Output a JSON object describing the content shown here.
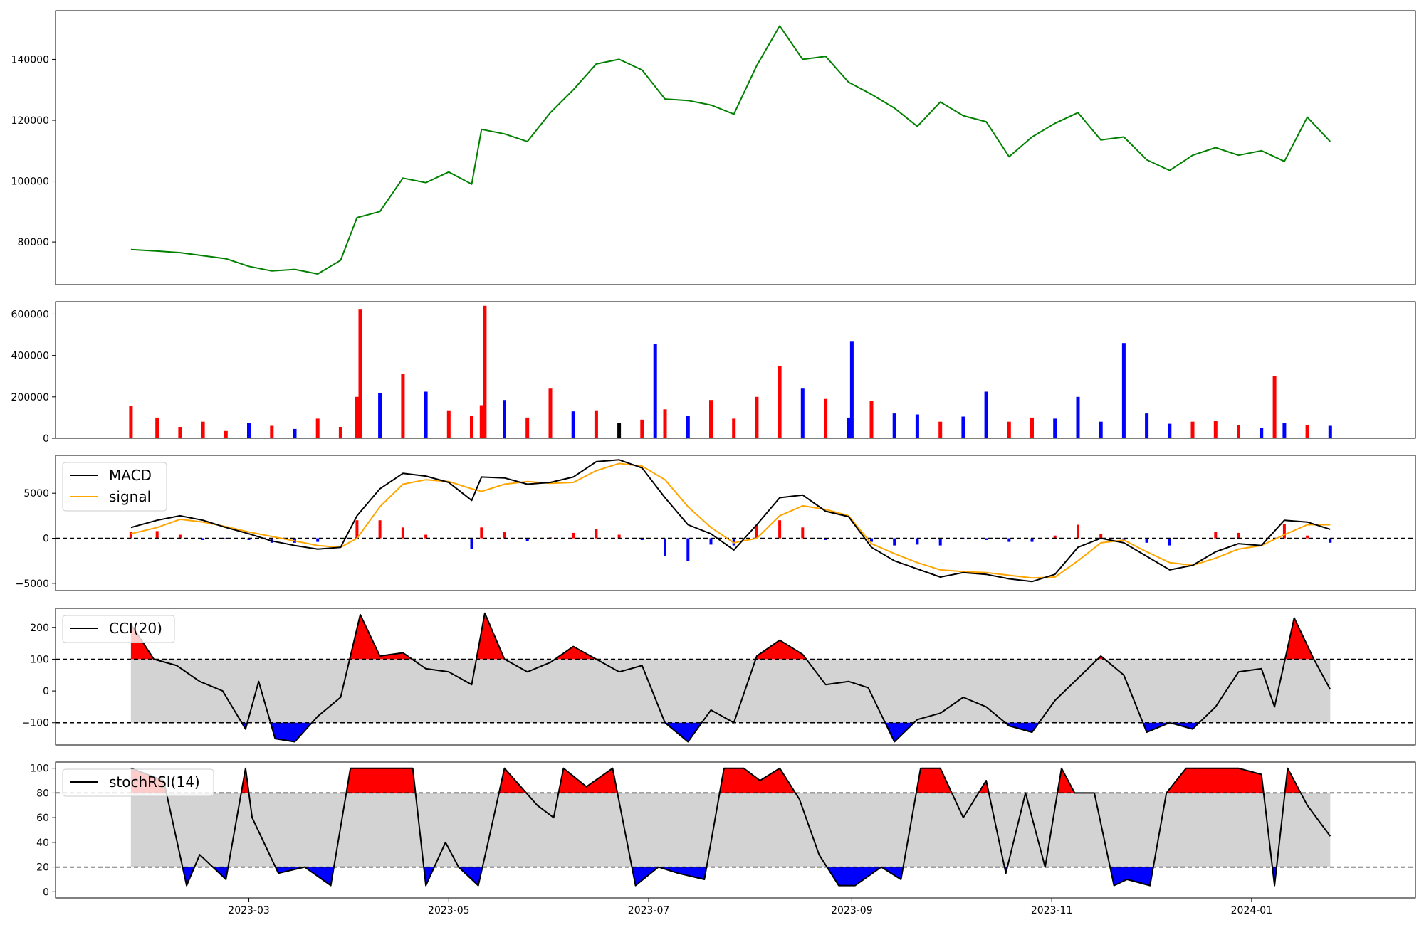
{
  "colors": {
    "price": "#008000",
    "up": "#ff0000",
    "down": "#0000ff",
    "flat": "#000000",
    "macd": "#000000",
    "signal": "#ffa500",
    "band": "#d3d3d3",
    "over": "#ff0000",
    "under": "#0000ff",
    "axis": "#000000",
    "grid": "none"
  },
  "chart_data": [
    {
      "type": "line",
      "name": "price",
      "xlim": [
        "2023-01-01",
        "2024-02-20"
      ],
      "ylim": [
        66000,
        156000
      ],
      "yticks": [
        80000,
        100000,
        120000,
        140000
      ],
      "ytick_labels": [
        "80000",
        "100000",
        "120000",
        "140000"
      ],
      "x": [
        "2023-01-24",
        "2023-02-01",
        "2023-02-08",
        "2023-02-15",
        "2023-02-22",
        "2023-03-01",
        "2023-03-08",
        "2023-03-15",
        "2023-03-22",
        "2023-03-29",
        "2023-04-03",
        "2023-04-10",
        "2023-04-17",
        "2023-04-24",
        "2023-05-01",
        "2023-05-08",
        "2023-05-11",
        "2023-05-18",
        "2023-05-25",
        "2023-06-01",
        "2023-06-08",
        "2023-06-15",
        "2023-06-22",
        "2023-06-29",
        "2023-07-06",
        "2023-07-13",
        "2023-07-20",
        "2023-07-27",
        "2023-08-03",
        "2023-08-10",
        "2023-08-17",
        "2023-08-24",
        "2023-08-31",
        "2023-09-07",
        "2023-09-14",
        "2023-09-21",
        "2023-09-28",
        "2023-10-05",
        "2023-10-12",
        "2023-10-19",
        "2023-10-26",
        "2023-11-02",
        "2023-11-09",
        "2023-11-16",
        "2023-11-23",
        "2023-11-30",
        "2023-12-07",
        "2023-12-14",
        "2023-12-21",
        "2023-12-28",
        "2024-01-04",
        "2024-01-11",
        "2024-01-18",
        "2024-01-25"
      ],
      "values": [
        77500,
        77000,
        76500,
        75500,
        74500,
        72000,
        70500,
        71000,
        69500,
        74000,
        88000,
        90000,
        101000,
        99500,
        103000,
        99000,
        117000,
        115500,
        113000,
        122500,
        130000,
        138500,
        140000,
        136500,
        127000,
        126500,
        125000,
        122000,
        138000,
        151000,
        140000,
        141000,
        132500,
        128500,
        124000,
        118000,
        126000,
        121500,
        119500,
        108000,
        114500,
        119000,
        122500,
        113500,
        114500,
        107000,
        103500,
        108500,
        111000,
        108500,
        110000,
        106500,
        121000,
        113000
      ]
    },
    {
      "type": "bar",
      "name": "volume",
      "ylim": [
        0,
        660000
      ],
      "yticks": [
        0,
        200000,
        400000,
        600000
      ],
      "ytick_labels": [
        "0",
        "200000",
        "400000",
        "600000"
      ],
      "x": [
        "2023-01-24",
        "2023-02-01",
        "2023-02-08",
        "2023-02-15",
        "2023-02-22",
        "2023-03-01",
        "2023-03-08",
        "2023-03-15",
        "2023-03-22",
        "2023-03-29",
        "2023-04-03",
        "2023-04-04",
        "2023-04-10",
        "2023-04-17",
        "2023-04-24",
        "2023-05-01",
        "2023-05-08",
        "2023-05-11",
        "2023-05-12",
        "2023-05-18",
        "2023-05-25",
        "2023-06-01",
        "2023-06-08",
        "2023-06-15",
        "2023-06-22",
        "2023-06-29",
        "2023-07-03",
        "2023-07-06",
        "2023-07-13",
        "2023-07-20",
        "2023-07-27",
        "2023-08-03",
        "2023-08-10",
        "2023-08-17",
        "2023-08-24",
        "2023-08-31",
        "2023-09-01",
        "2023-09-07",
        "2023-09-14",
        "2023-09-21",
        "2023-09-28",
        "2023-10-05",
        "2023-10-12",
        "2023-10-19",
        "2023-10-26",
        "2023-11-02",
        "2023-11-09",
        "2023-11-16",
        "2023-11-23",
        "2023-11-30",
        "2023-12-07",
        "2023-12-14",
        "2023-12-21",
        "2023-12-28",
        "2024-01-04",
        "2024-01-08",
        "2024-01-11",
        "2024-01-18",
        "2024-01-25"
      ],
      "values": [
        155000,
        100000,
        55000,
        80000,
        35000,
        75000,
        60000,
        45000,
        95000,
        55000,
        200000,
        625000,
        220000,
        310000,
        225000,
        135000,
        110000,
        160000,
        640000,
        185000,
        100000,
        240000,
        130000,
        135000,
        75000,
        90000,
        455000,
        140000,
        110000,
        185000,
        95000,
        200000,
        350000,
        240000,
        190000,
        100000,
        470000,
        180000,
        120000,
        115000,
        80000,
        105000,
        225000,
        80000,
        100000,
        95000,
        200000,
        80000,
        460000,
        120000,
        70000,
        80000,
        85000,
        65000,
        50000,
        300000,
        75000,
        65000,
        60000
      ],
      "direction": [
        "up",
        "up",
        "up",
        "up",
        "up",
        "down",
        "up",
        "down",
        "up",
        "up",
        "up",
        "up",
        "down",
        "up",
        "down",
        "up",
        "up",
        "up",
        "up",
        "down",
        "up",
        "up",
        "down",
        "up",
        "flat",
        "up",
        "down",
        "up",
        "down",
        "up",
        "up",
        "up",
        "up",
        "down",
        "up",
        "down",
        "down",
        "up",
        "down",
        "down",
        "up",
        "down",
        "down",
        "up",
        "up",
        "down",
        "down",
        "down",
        "down",
        "down",
        "down",
        "up",
        "up",
        "up",
        "down",
        "up",
        "down",
        "up",
        "down"
      ]
    },
    {
      "type": "line",
      "name": "macd-panel",
      "ylim": [
        -5800,
        9200
      ],
      "yticks": [
        -5000,
        0,
        5000
      ],
      "ytick_labels": [
        "−5000",
        "0",
        "5000"
      ],
      "legend": {
        "position": "top-left",
        "entries": [
          "MACD",
          "signal"
        ]
      },
      "x": [
        "2023-01-24",
        "2023-02-01",
        "2023-02-08",
        "2023-02-15",
        "2023-02-22",
        "2023-03-01",
        "2023-03-08",
        "2023-03-15",
        "2023-03-22",
        "2023-03-29",
        "2023-04-03",
        "2023-04-10",
        "2023-04-17",
        "2023-04-24",
        "2023-05-01",
        "2023-05-08",
        "2023-05-11",
        "2023-05-18",
        "2023-05-25",
        "2023-06-01",
        "2023-06-08",
        "2023-06-15",
        "2023-06-22",
        "2023-06-29",
        "2023-07-06",
        "2023-07-13",
        "2023-07-20",
        "2023-07-27",
        "2023-08-03",
        "2023-08-10",
        "2023-08-17",
        "2023-08-24",
        "2023-08-31",
        "2023-09-07",
        "2023-09-14",
        "2023-09-21",
        "2023-09-28",
        "2023-10-05",
        "2023-10-12",
        "2023-10-19",
        "2023-10-26",
        "2023-11-02",
        "2023-11-09",
        "2023-11-16",
        "2023-11-23",
        "2023-11-30",
        "2023-12-07",
        "2023-12-14",
        "2023-12-21",
        "2023-12-28",
        "2024-01-04",
        "2024-01-11",
        "2024-01-18",
        "2024-01-25"
      ],
      "series": [
        {
          "name": "MACD",
          "values": [
            1200,
            2000,
            2500,
            2000,
            1200,
            500,
            -300,
            -800,
            -1200,
            -1000,
            2500,
            5500,
            7200,
            6900,
            6200,
            4200,
            6800,
            6700,
            6000,
            6200,
            6800,
            8500,
            8700,
            7800,
            4500,
            1500,
            500,
            -1300,
            1500,
            4500,
            4800,
            3000,
            2400,
            -1000,
            -2500,
            -3400,
            -4300,
            -3800,
            -4000,
            -4500,
            -4800,
            -4000,
            -1000,
            0,
            -500,
            -2000,
            -3500,
            -3000,
            -1500,
            -600,
            -800,
            2000,
            1800,
            1000
          ]
        },
        {
          "name": "signal",
          "values": [
            500,
            1200,
            2100,
            1800,
            1300,
            700,
            200,
            -300,
            -800,
            -1000,
            0,
            3500,
            6000,
            6500,
            6300,
            5500,
            5200,
            6000,
            6300,
            6100,
            6200,
            7500,
            8300,
            8000,
            6500,
            3500,
            1200,
            -500,
            0,
            2500,
            3600,
            3200,
            2500,
            -600,
            -1700,
            -2700,
            -3500,
            -3700,
            -3800,
            -4100,
            -4400,
            -4300,
            -2500,
            -500,
            -200,
            -1500,
            -2700,
            -3000,
            -2200,
            -1200,
            -800,
            400,
            1500,
            1500
          ]
        }
      ],
      "histogram": [
        700,
        800,
        400,
        -200,
        -100,
        -200,
        -500,
        -500,
        -400,
        0,
        2000,
        2000,
        1200,
        400,
        -100,
        -1200,
        1200,
        700,
        -300,
        100,
        600,
        1000,
        400,
        -200,
        -2000,
        -2500,
        -700,
        -800,
        1500,
        2000,
        1200,
        -200,
        -100,
        -400,
        -800,
        -700,
        -800,
        -100,
        -200,
        -400,
        -400,
        300,
        1500,
        500,
        -300,
        -500,
        -800,
        0,
        700,
        600,
        0,
        1600,
        300,
        -500
      ]
    },
    {
      "type": "area",
      "name": "cci-panel",
      "ylim": [
        -170,
        260
      ],
      "yticks": [
        -100,
        0,
        100,
        200
      ],
      "ytick_labels": [
        "−100",
        "0",
        "100",
        "200"
      ],
      "band": [
        -100,
        100
      ],
      "legend": {
        "position": "top-left",
        "entries": [
          "CCI(20)"
        ]
      },
      "x": [
        "2023-01-24",
        "2023-01-31",
        "2023-02-07",
        "2023-02-14",
        "2023-02-21",
        "2023-02-28",
        "2023-03-04",
        "2023-03-09",
        "2023-03-15",
        "2023-03-22",
        "2023-03-29",
        "2023-04-04",
        "2023-04-10",
        "2023-04-17",
        "2023-04-24",
        "2023-05-01",
        "2023-05-08",
        "2023-05-12",
        "2023-05-18",
        "2023-05-25",
        "2023-06-01",
        "2023-06-08",
        "2023-06-15",
        "2023-06-22",
        "2023-06-29",
        "2023-07-06",
        "2023-07-13",
        "2023-07-20",
        "2023-07-27",
        "2023-08-03",
        "2023-08-10",
        "2023-08-17",
        "2023-08-24",
        "2023-08-31",
        "2023-09-06",
        "2023-09-14",
        "2023-09-21",
        "2023-09-28",
        "2023-10-05",
        "2023-10-12",
        "2023-10-19",
        "2023-10-26",
        "2023-11-02",
        "2023-11-09",
        "2023-11-16",
        "2023-11-23",
        "2023-11-30",
        "2023-12-07",
        "2023-12-14",
        "2023-12-21",
        "2023-12-28",
        "2024-01-04",
        "2024-01-08",
        "2024-01-14",
        "2024-01-20",
        "2024-01-25"
      ],
      "values": [
        210,
        100,
        80,
        30,
        0,
        -120,
        30,
        -150,
        -160,
        -80,
        -20,
        240,
        110,
        120,
        70,
        60,
        20,
        245,
        100,
        60,
        90,
        140,
        100,
        60,
        80,
        -100,
        -160,
        -60,
        -100,
        110,
        160,
        115,
        20,
        30,
        10,
        -160,
        -90,
        -70,
        -20,
        -50,
        -110,
        -130,
        -30,
        40,
        110,
        50,
        -130,
        -100,
        -120,
        -50,
        60,
        70,
        -50,
        230,
        100,
        5
      ]
    },
    {
      "type": "area",
      "name": "stochrsi-panel",
      "ylim": [
        -5,
        105
      ],
      "yticks": [
        0,
        20,
        40,
        60,
        80,
        100
      ],
      "ytick_labels": [
        "0",
        "20",
        "40",
        "60",
        "80",
        "100"
      ],
      "band": [
        20,
        80
      ],
      "legend": {
        "position": "top-left",
        "entries": [
          "stochRSI(14)"
        ]
      },
      "x": [
        "2023-01-24",
        "2023-02-03",
        "2023-02-10",
        "2023-02-14",
        "2023-02-22",
        "2023-02-28",
        "2023-03-02",
        "2023-03-10",
        "2023-03-18",
        "2023-03-26",
        "2023-04-01",
        "2023-04-04",
        "2023-04-20",
        "2023-04-24",
        "2023-04-30",
        "2023-05-04",
        "2023-05-10",
        "2023-05-13",
        "2023-05-18",
        "2023-05-28",
        "2023-06-02",
        "2023-06-05",
        "2023-06-12",
        "2023-06-20",
        "2023-06-27",
        "2023-07-04",
        "2023-07-10",
        "2023-07-18",
        "2023-07-24",
        "2023-07-30",
        "2023-08-04",
        "2023-08-10",
        "2023-08-16",
        "2023-08-22",
        "2023-08-28",
        "2023-09-02",
        "2023-09-10",
        "2023-09-16",
        "2023-09-22",
        "2023-09-28",
        "2023-10-05",
        "2023-10-12",
        "2023-10-18",
        "2023-10-24",
        "2023-10-30",
        "2023-11-04",
        "2023-11-08",
        "2023-11-14",
        "2023-11-20",
        "2023-11-24",
        "2023-12-01",
        "2023-12-06",
        "2023-12-12",
        "2023-12-20",
        "2023-12-28",
        "2024-01-04",
        "2024-01-08",
        "2024-01-12",
        "2024-01-18",
        "2024-01-25"
      ],
      "values": [
        100,
        90,
        5,
        30,
        10,
        100,
        60,
        15,
        20,
        5,
        100,
        100,
        100,
        5,
        40,
        20,
        5,
        40,
        100,
        70,
        60,
        100,
        85,
        100,
        5,
        20,
        15,
        10,
        100,
        100,
        90,
        100,
        75,
        30,
        5,
        5,
        20,
        10,
        100,
        100,
        60,
        90,
        15,
        80,
        20,
        100,
        80,
        80,
        5,
        10,
        5,
        80,
        100,
        100,
        100,
        95,
        5,
        100,
        70,
        45
      ]
    }
  ],
  "xaxis": {
    "xlim": [
      "2023-01-01",
      "2024-02-20"
    ],
    "ticks": [
      "2023-03-01",
      "2023-05-01",
      "2023-07-01",
      "2023-09-01",
      "2023-11-01",
      "2024-01-01"
    ],
    "tick_labels": [
      "2023-03",
      "2023-05",
      "2023-07",
      "2023-09",
      "2023-11",
      "2024-01"
    ]
  }
}
